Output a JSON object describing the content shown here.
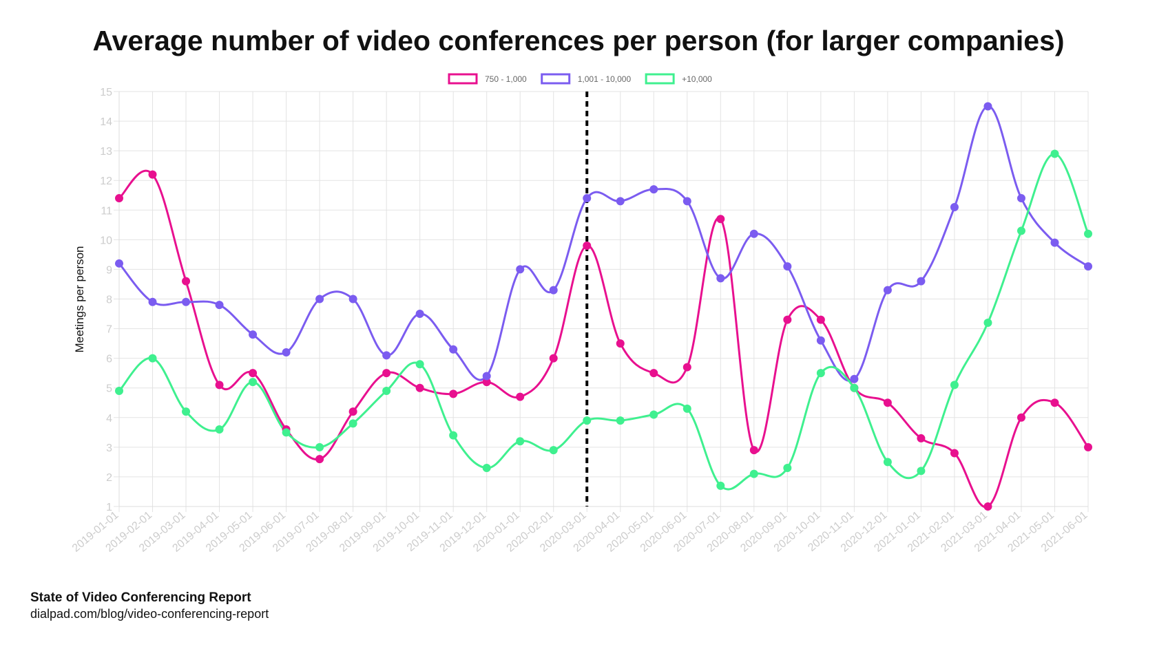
{
  "chart_data": {
    "type": "line",
    "title": "Average number of video conferences per person (for larger companies)",
    "ylabel": "Meetings per person",
    "xlabel": "",
    "ylim": [
      1,
      15
    ],
    "grid": true,
    "legend_position": "top-center",
    "curve": "smooth",
    "marker_line": {
      "x": "2020-03-01",
      "style": "dashed",
      "color": "#000000"
    },
    "categories": [
      "2019-01-01",
      "2019-02-01",
      "2019-03-01",
      "2019-04-01",
      "2019-05-01",
      "2019-06-01",
      "2019-07-01",
      "2019-08-01",
      "2019-09-01",
      "2019-10-01",
      "2019-11-01",
      "2019-12-01",
      "2020-01-01",
      "2020-02-01",
      "2020-03-01",
      "2020-04-01",
      "2020-05-01",
      "2020-06-01",
      "2020-07-01",
      "2020-08-01",
      "2020-09-01",
      "2020-10-01",
      "2020-11-01",
      "2020-12-01",
      "2021-01-01",
      "2021-02-01",
      "2021-03-01",
      "2021-04-01",
      "2021-05-01",
      "2021-06-01"
    ],
    "yticks": [
      1,
      2,
      3,
      4,
      5,
      6,
      7,
      8,
      9,
      10,
      11,
      12,
      13,
      14,
      15
    ],
    "series": [
      {
        "name": "750 - 1,000",
        "color": "#e8108f",
        "values": [
          11.4,
          12.2,
          8.6,
          5.1,
          5.5,
          3.6,
          2.6,
          4.2,
          5.5,
          5.0,
          4.8,
          5.2,
          4.7,
          6.0,
          9.8,
          6.5,
          5.5,
          5.7,
          10.7,
          2.9,
          7.3,
          7.3,
          5.0,
          4.5,
          3.3,
          2.8,
          1.0,
          4.0,
          4.5,
          3.0
        ]
      },
      {
        "name": "1,001 - 10,000",
        "color": "#7b5cf0",
        "values": [
          9.2,
          7.9,
          7.9,
          7.8,
          6.8,
          6.2,
          8.0,
          8.0,
          6.1,
          7.5,
          6.3,
          5.4,
          9.0,
          8.3,
          11.4,
          11.3,
          11.7,
          11.3,
          8.7,
          10.2,
          9.1,
          6.6,
          5.3,
          8.3,
          8.6,
          11.1,
          14.5,
          11.4,
          9.9,
          9.1
        ]
      },
      {
        "name": "+10,000",
        "color": "#3ff08f",
        "values": [
          4.9,
          6.0,
          4.2,
          3.6,
          5.2,
          3.5,
          3.0,
          3.8,
          4.9,
          5.8,
          3.4,
          2.3,
          3.2,
          2.9,
          3.9,
          3.9,
          4.1,
          4.3,
          1.7,
          2.1,
          2.3,
          5.5,
          5.0,
          2.5,
          2.2,
          5.1,
          7.2,
          10.3,
          12.9,
          10.2
        ]
      }
    ]
  },
  "footer": {
    "source_title": "State of Video Conferencing Report",
    "source_url": "dialpad.com/blog/video-conferencing-report"
  }
}
